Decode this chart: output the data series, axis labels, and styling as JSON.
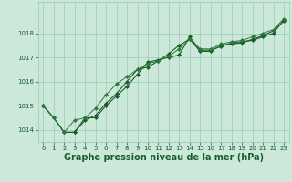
{
  "x": [
    0,
    1,
    2,
    3,
    4,
    5,
    6,
    7,
    8,
    9,
    10,
    11,
    12,
    13,
    14,
    15,
    16,
    17,
    18,
    19,
    20,
    21,
    22,
    23
  ],
  "line1": [
    1015.0,
    1014.5,
    1013.9,
    1013.9,
    1014.5,
    1014.5,
    1015.0,
    1015.4,
    1015.8,
    1016.3,
    1016.8,
    1016.9,
    1017.0,
    1017.1,
    1017.85,
    1017.3,
    1017.3,
    1017.45,
    1017.6,
    1017.65,
    1017.7,
    1017.85,
    1018.0,
    1018.55
  ],
  "line2": [
    1015.0,
    1014.5,
    1013.9,
    1013.9,
    1014.4,
    1014.6,
    1015.1,
    1015.5,
    1016.0,
    1016.5,
    1016.6,
    1016.85,
    1017.15,
    1017.5,
    1017.75,
    1017.25,
    1017.25,
    1017.5,
    1017.55,
    1017.6,
    1017.75,
    1017.9,
    1018.1,
    1018.5
  ],
  "line3": [
    1015.0,
    1014.5,
    1013.9,
    1014.4,
    1014.5,
    1014.9,
    1015.45,
    1015.9,
    1016.2,
    1016.5,
    1016.75,
    1016.85,
    1017.05,
    1017.35,
    1017.75,
    1017.35,
    1017.35,
    1017.55,
    1017.65,
    1017.7,
    1017.85,
    1018.0,
    1018.15,
    1018.6
  ],
  "bg_color": "#cce8da",
  "grid_color": "#99ccb3",
  "line_color_dark": "#1a5c2a",
  "line_color_mid": "#2d7a3a",
  "marker": "D",
  "marker_size": 2,
  "xlabel": "Graphe pression niveau de la mer (hPa)",
  "xlabel_fontsize": 7,
  "ylim_min": 1013.5,
  "ylim_max": 1019.3,
  "yticks": [
    1014,
    1015,
    1016,
    1017,
    1018
  ],
  "xticks": [
    0,
    1,
    2,
    3,
    4,
    5,
    6,
    7,
    8,
    9,
    10,
    11,
    12,
    13,
    14,
    15,
    16,
    17,
    18,
    19,
    20,
    21,
    22,
    23
  ]
}
